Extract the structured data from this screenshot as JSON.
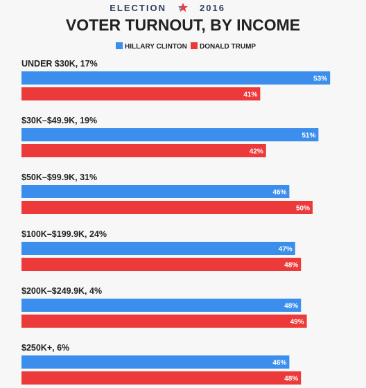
{
  "header": {
    "kicker_left": "ELECTION",
    "kicker_right": "2016",
    "title": "VOTER TURNOUT, BY INCOME"
  },
  "icons": {
    "kicker_star": "star-icon"
  },
  "colors": {
    "background": "#f7f7f7",
    "text": "#222222",
    "kicker": "#2c3e5c",
    "clinton": "#3b8eec",
    "trump": "#ec3a3a",
    "value_label": "#ffffff"
  },
  "legend": {
    "position": "top-center"
  },
  "chart_data": {
    "type": "bar",
    "orientation": "horizontal",
    "title": "VOTER TURNOUT, BY INCOME",
    "categories": [
      "UNDER $30K, 17%",
      "$30K–$49.9K, 19%",
      "$50K–$99.9K, 31%",
      "$100K–$199.9K, 24%",
      "$200K–$249.9K, 4%",
      "$250K+, 6%"
    ],
    "series": [
      {
        "name": "HILLARY CLINTON",
        "color": "#3b8eec",
        "values": [
          53,
          51,
          46,
          47,
          48,
          46
        ]
      },
      {
        "name": "DONALD TRUMP",
        "color": "#ec3a3a",
        "values": [
          41,
          42,
          50,
          48,
          49,
          48
        ]
      }
    ],
    "value_suffix": "%",
    "xlim": [
      0,
      60
    ],
    "grid": false
  }
}
